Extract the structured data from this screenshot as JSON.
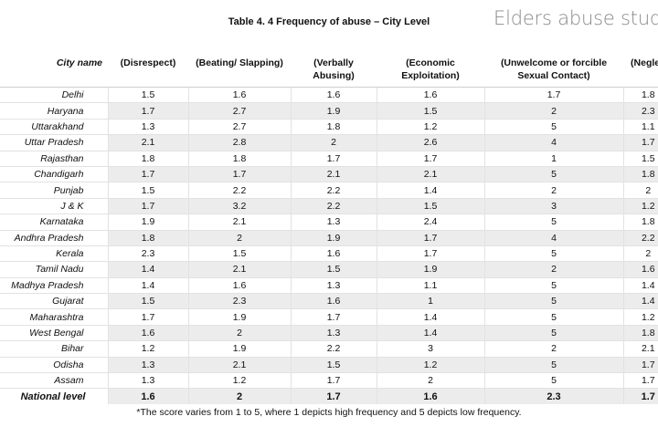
{
  "brand": "Elders abuse study",
  "title": "Table 4. 4 Frequency of abuse – City Level",
  "headers": {
    "city": "City name",
    "c1": "(Disrespect)",
    "c2": "(Beating/ Slapping)",
    "c3a": "(Verbally",
    "c3b": "Abusing)",
    "c4a": "(Economic",
    "c4b": "Exploitation)",
    "c5a": "(Unwelcome or forcible",
    "c5b": "Sexual Contact)",
    "c6": "(Neglec"
  },
  "rows": [
    {
      "city": "Delhi",
      "v1": "1.5",
      "v2": "1.6",
      "v3": "1.6",
      "v4": "1.6",
      "v5": "1.7",
      "v6": "1.8"
    },
    {
      "city": "Haryana",
      "v1": "1.7",
      "v2": "2.7",
      "v3": "1.9",
      "v4": "1.5",
      "v5": "2",
      "v6": "2.3"
    },
    {
      "city": "Uttarakhand",
      "v1": "1.3",
      "v2": "2.7",
      "v3": "1.8",
      "v4": "1.2",
      "v5": "5",
      "v6": "1.1"
    },
    {
      "city": "Uttar Pradesh",
      "v1": "2.1",
      "v2": "2.8",
      "v3": "2",
      "v4": "2.6",
      "v5": "4",
      "v6": "1.7"
    },
    {
      "city": "Rajasthan",
      "v1": "1.8",
      "v2": "1.8",
      "v3": "1.7",
      "v4": "1.7",
      "v5": "1",
      "v6": "1.5"
    },
    {
      "city": "Chandigarh",
      "v1": "1.7",
      "v2": "1.7",
      "v3": "2.1",
      "v4": "2.1",
      "v5": "5",
      "v6": "1.8"
    },
    {
      "city": "Punjab",
      "v1": "1.5",
      "v2": "2.2",
      "v3": "2.2",
      "v4": "1.4",
      "v5": "2",
      "v6": "2"
    },
    {
      "city": "J & K",
      "v1": "1.7",
      "v2": "3.2",
      "v3": "2.2",
      "v4": "1.5",
      "v5": "3",
      "v6": "1.2"
    },
    {
      "city": "Karnataka",
      "v1": "1.9",
      "v2": "2.1",
      "v3": "1.3",
      "v4": "2.4",
      "v5": "5",
      "v6": "1.8"
    },
    {
      "city": "Andhra Pradesh",
      "v1": "1.8",
      "v2": "2",
      "v3": "1.9",
      "v4": "1.7",
      "v5": "4",
      "v6": "2.2"
    },
    {
      "city": "Kerala",
      "v1": "2.3",
      "v2": "1.5",
      "v3": "1.6",
      "v4": "1.7",
      "v5": "5",
      "v6": "2"
    },
    {
      "city": "Tamil Nadu",
      "v1": "1.4",
      "v2": "2.1",
      "v3": "1.5",
      "v4": "1.9",
      "v5": "2",
      "v6": "1.6"
    },
    {
      "city": "Madhya Pradesh",
      "v1": "1.4",
      "v2": "1.6",
      "v3": "1.3",
      "v4": "1.1",
      "v5": "5",
      "v6": "1.4"
    },
    {
      "city": "Gujarat",
      "v1": "1.5",
      "v2": "2.3",
      "v3": "1.6",
      "v4": "1",
      "v5": "5",
      "v6": "1.4"
    },
    {
      "city": "Maharashtra",
      "v1": "1.7",
      "v2": "1.9",
      "v3": "1.7",
      "v4": "1.4",
      "v5": "5",
      "v6": "1.2"
    },
    {
      "city": "West Bengal",
      "v1": "1.6",
      "v2": "2",
      "v3": "1.3",
      "v4": "1.4",
      "v5": "5",
      "v6": "1.8"
    },
    {
      "city": "Bihar",
      "v1": "1.2",
      "v2": "1.9",
      "v3": "2.2",
      "v4": "3",
      "v5": "2",
      "v6": "2.1"
    },
    {
      "city": "Odisha",
      "v1": "1.3",
      "v2": "2.1",
      "v3": "1.5",
      "v4": "1.2",
      "v5": "5",
      "v6": "1.7"
    },
    {
      "city": "Assam",
      "v1": "1.3",
      "v2": "1.2",
      "v3": "1.7",
      "v4": "2",
      "v5": "5",
      "v6": "1.7"
    }
  ],
  "national": {
    "city": "National level",
    "v1": "1.6",
    "v2": "2",
    "v3": "1.7",
    "v4": "1.6",
    "v5": "2.3",
    "v6": "1.7"
  },
  "footnote": "*The score varies from 1 to 5, where 1 depicts high frequency and 5 depicts low frequency."
}
